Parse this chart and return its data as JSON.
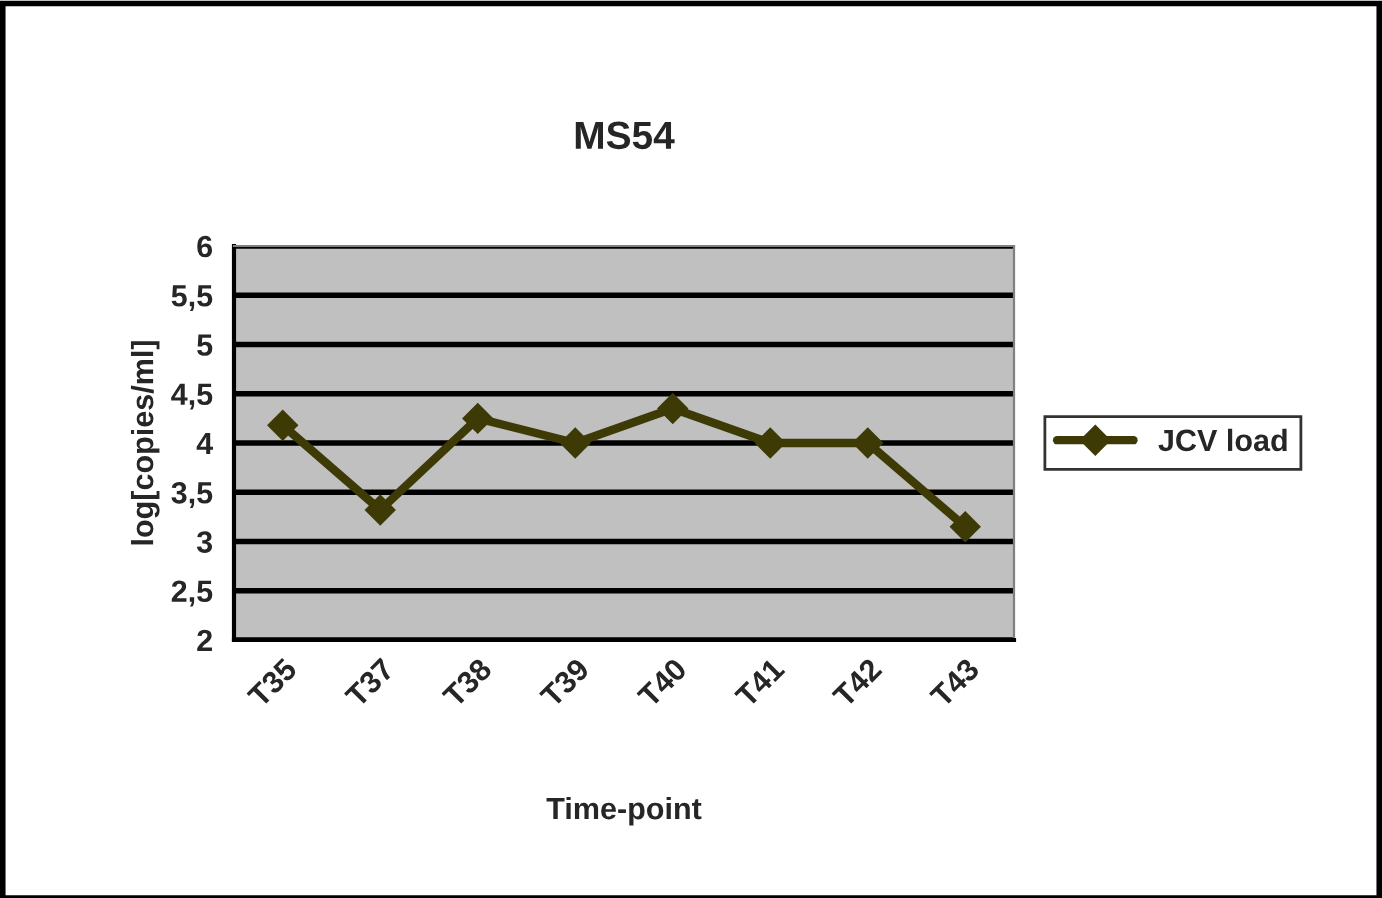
{
  "chart_data": {
    "type": "line",
    "title": "MS54",
    "xlabel": "Time-point",
    "ylabel": "log[copies/ml]",
    "categories": [
      "T35",
      "T37",
      "T38",
      "T39",
      "T40",
      "T41",
      "T42",
      "T43"
    ],
    "series": [
      {
        "name": "JCV load",
        "color": "#3d3a06",
        "values": [
          4.18,
          3.32,
          4.25,
          4.0,
          4.35,
          4.0,
          4.0,
          3.15
        ]
      }
    ],
    "ylim": [
      2,
      6
    ],
    "yticks": [
      2,
      {
        "value": 2.5,
        "label": "2,5"
      },
      3,
      {
        "value": 3.5,
        "label": "3,5"
      },
      4,
      {
        "value": 4.5,
        "label": "4,5"
      },
      5,
      {
        "value": 5.5,
        "label": "5,5"
      },
      6
    ],
    "grid": "y",
    "legend": "right",
    "marker": "diamond",
    "line_style": "solid"
  }
}
